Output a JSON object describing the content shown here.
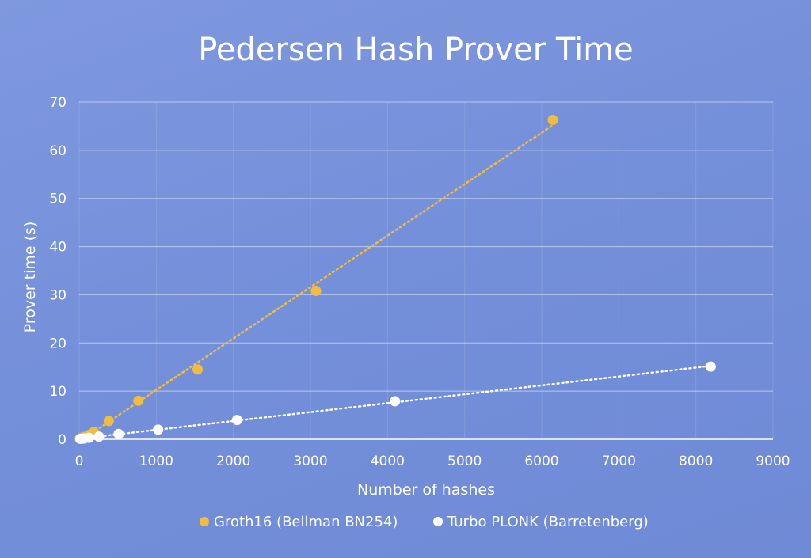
{
  "chart_data": {
    "type": "scatter",
    "title": "Pedersen Hash Prover Time",
    "xlabel": "Number of hashes",
    "ylabel": "Prover time (s)",
    "xlim": [
      0,
      9000
    ],
    "ylim": [
      0,
      70
    ],
    "x_ticks": [
      0,
      1000,
      2000,
      3000,
      4000,
      5000,
      6000,
      7000,
      8000,
      9000
    ],
    "y_ticks": [
      0,
      10,
      20,
      30,
      40,
      50,
      60,
      70
    ],
    "grid": "horizontal",
    "legend_position": "bottom-center",
    "trendline": "linear-dotted",
    "series": [
      {
        "name": "Groth16 (Bellman BN254)",
        "color": "#f2bd3e",
        "x": [
          8,
          16,
          32,
          64,
          128,
          192,
          384,
          768,
          1536,
          3072,
          6144
        ],
        "y": [
          0.1,
          0.15,
          0.3,
          0.5,
          0.9,
          1.5,
          3.8,
          8,
          14.5,
          30.8,
          66.3
        ]
      },
      {
        "name": "Turbo PLONK (Barretenberg)",
        "color": "#ffffff",
        "x": [
          16,
          32,
          64,
          128,
          256,
          512,
          1024,
          2048,
          4096,
          8192
        ],
        "y": [
          0.1,
          0.1,
          0.15,
          0.3,
          0.55,
          1.1,
          2,
          4,
          7.9,
          15.1
        ]
      }
    ]
  }
}
